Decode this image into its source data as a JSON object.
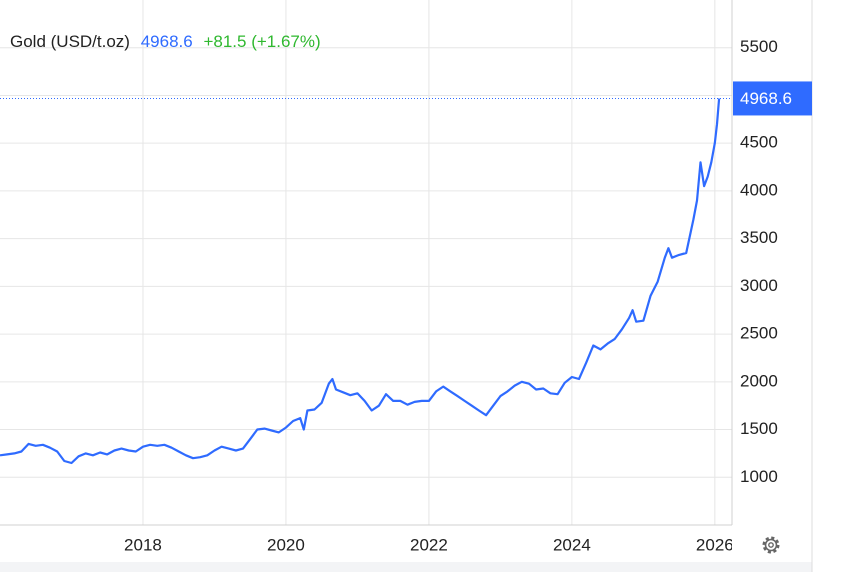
{
  "chart_data": {
    "type": "line",
    "title": "Gold (USD/t.oz)",
    "change": "+81.5 (+1.67%)",
    "color": "#2f6bff",
    "change_color": "#2fb82f",
    "grid": true,
    "xlim": [
      2016.0,
      2026.24
    ],
    "xticks": [
      2018,
      2020,
      2022,
      2024,
      2026
    ],
    "ylim": [
      500,
      6000
    ],
    "yticks": [
      1000,
      1500,
      2000,
      2500,
      3000,
      3500,
      4000,
      4500,
      5000,
      5500
    ],
    "x": [
      2016.0,
      2016.1,
      2016.2,
      2016.3,
      2016.4,
      2016.5,
      2016.6,
      2016.7,
      2016.8,
      2016.9,
      2017.0,
      2017.1,
      2017.2,
      2017.3,
      2017.4,
      2017.5,
      2017.6,
      2017.7,
      2017.8,
      2017.9,
      2018.0,
      2018.1,
      2018.2,
      2018.3,
      2018.4,
      2018.5,
      2018.6,
      2018.7,
      2018.8,
      2018.9,
      2019.0,
      2019.1,
      2019.2,
      2019.3,
      2019.4,
      2019.5,
      2019.6,
      2019.7,
      2019.8,
      2019.9,
      2020.0,
      2020.1,
      2020.2,
      2020.25,
      2020.3,
      2020.4,
      2020.5,
      2020.6,
      2020.65,
      2020.7,
      2020.8,
      2020.9,
      2021.0,
      2021.1,
      2021.2,
      2021.3,
      2021.4,
      2021.5,
      2021.6,
      2021.7,
      2021.8,
      2021.9,
      2022.0,
      2022.1,
      2022.2,
      2022.3,
      2022.4,
      2022.5,
      2022.6,
      2022.7,
      2022.8,
      2022.9,
      2023.0,
      2023.1,
      2023.2,
      2023.3,
      2023.4,
      2023.5,
      2023.6,
      2023.7,
      2023.8,
      2023.9,
      2024.0,
      2024.1,
      2024.2,
      2024.3,
      2024.4,
      2024.5,
      2024.6,
      2024.7,
      2024.8,
      2024.85,
      2024.9,
      2025.0,
      2025.1,
      2025.2,
      2025.3,
      2025.35,
      2025.4,
      2025.5,
      2025.6,
      2025.7,
      2025.75,
      2025.8,
      2025.85,
      2025.9,
      2025.95,
      2026.0,
      2026.03,
      2026.06
    ],
    "values": [
      1230,
      1240,
      1250,
      1270,
      1350,
      1330,
      1340,
      1310,
      1270,
      1170,
      1150,
      1220,
      1250,
      1230,
      1260,
      1240,
      1280,
      1300,
      1280,
      1270,
      1320,
      1340,
      1330,
      1340,
      1310,
      1270,
      1230,
      1200,
      1210,
      1230,
      1280,
      1320,
      1300,
      1280,
      1300,
      1400,
      1500,
      1510,
      1490,
      1470,
      1520,
      1590,
      1620,
      1500,
      1700,
      1710,
      1780,
      1980,
      2030,
      1920,
      1890,
      1860,
      1880,
      1800,
      1700,
      1750,
      1870,
      1800,
      1800,
      1760,
      1790,
      1800,
      1800,
      1900,
      1950,
      1900,
      1850,
      1800,
      1750,
      1700,
      1650,
      1750,
      1850,
      1900,
      1960,
      2000,
      1980,
      1920,
      1930,
      1880,
      1870,
      1990,
      2050,
      2030,
      2200,
      2380,
      2340,
      2400,
      2450,
      2550,
      2670,
      2750,
      2630,
      2640,
      2900,
      3050,
      3300,
      3400,
      3300,
      3330,
      3350,
      3700,
      3900,
      4300,
      4050,
      4150,
      4300,
      4500,
      4700,
      4968.6
    ]
  }
}
